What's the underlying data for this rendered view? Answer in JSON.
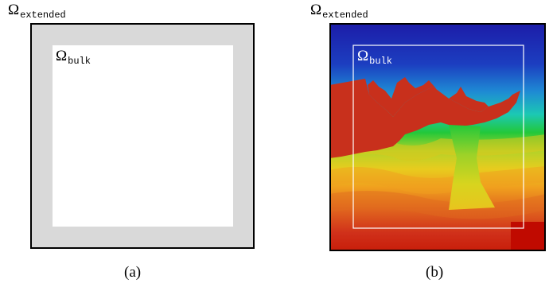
{
  "panel_a": {
    "extended_symbol": "Ω",
    "extended_subscript": "extended",
    "bulk_symbol": "Ω",
    "bulk_subscript": "bulk",
    "caption": "(a)",
    "colors": {
      "extended": "#d9d9d9",
      "bulk": "#ffffff",
      "border": "#000000"
    }
  },
  "panel_b": {
    "extended_symbol": "Ω",
    "extended_subscript": "extended",
    "bulk_symbol": "Ω",
    "bulk_subscript": "bulk",
    "caption": "(b)",
    "colormap": [
      "#2020b0",
      "#1e8ad4",
      "#1cc8b4",
      "#22c83a",
      "#c8d41e",
      "#f0b81e",
      "#e06a1e",
      "#c81e0a"
    ],
    "colors": {
      "bulk_outline": "#ffffff",
      "border": "#000000",
      "salt_body": "#c8301c"
    }
  }
}
